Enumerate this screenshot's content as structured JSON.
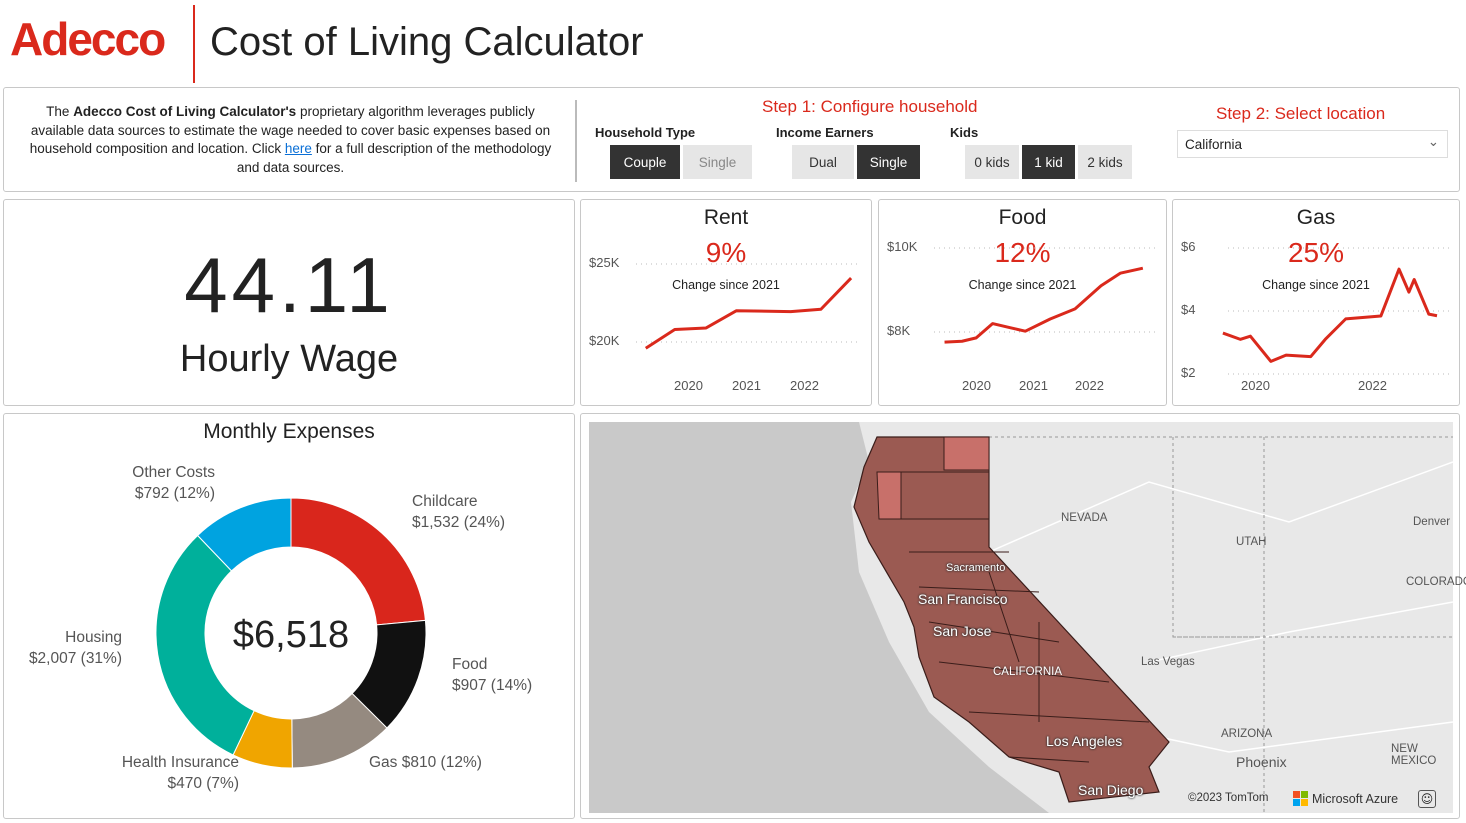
{
  "header": {
    "logo": "Adecco",
    "title": "Cost of Living Calculator"
  },
  "intro": {
    "pre": "The ",
    "brand": "Adecco Cost of Living Calculator's",
    "mid": " proprietary algorithm leverages publicly available data sources to estimate the wage needed to cover basic expenses based on household composition and location. Click ",
    "link": "here",
    "post": " for a full description of the methodology and data sources."
  },
  "step1": {
    "title": "Step 1: Configure household",
    "household_type": {
      "label": "Household Type",
      "options": [
        "Couple",
        "Single"
      ],
      "selected": "Couple"
    },
    "income_earners": {
      "label": "Income Earners",
      "options": [
        "Dual",
        "Single"
      ],
      "selected": "Single"
    },
    "kids": {
      "label": "Kids",
      "options": [
        "0 kids",
        "1 kid",
        "2 kids"
      ],
      "selected": "1 kid"
    }
  },
  "step2": {
    "title": "Step 2: Select location",
    "value": "California"
  },
  "wage": {
    "value": "44.11",
    "label": "Hourly Wage"
  },
  "kpis": [
    {
      "title": "Rent",
      "change": "9%",
      "caption": "Change since 2021",
      "yticks": [
        "$25K",
        "$20K"
      ],
      "xticks": [
        "2020",
        "2021",
        "2022"
      ]
    },
    {
      "title": "Food",
      "change": "12%",
      "caption": "Change since 2021",
      "yticks": [
        "$10K",
        "$8K"
      ],
      "xticks": [
        "2020",
        "2021",
        "2022"
      ]
    },
    {
      "title": "Gas",
      "change": "25%",
      "caption": "Change since 2021",
      "yticks": [
        "$6",
        "$4",
        "$2"
      ],
      "xticks": [
        "2020",
        "2022"
      ]
    }
  ],
  "chart_data": [
    {
      "type": "line",
      "title": "Rent",
      "ylim": [
        19000,
        26000
      ],
      "xlim": [
        2019,
        2023
      ],
      "grid": true,
      "x": [
        2019.22,
        2019.72,
        2020.26,
        2020.78,
        2021.72,
        2022.24,
        2022.76
      ],
      "y": [
        19600,
        20800,
        20900,
        22000,
        21950,
        22100,
        24100
      ]
    },
    {
      "type": "line",
      "title": "Food",
      "ylim": [
        7500,
        10200
      ],
      "xlim": [
        2019,
        2023.2
      ],
      "grid": true,
      "x": [
        2019.39,
        2019.7,
        2019.95,
        2020.24,
        2020.56,
        2020.82,
        2021.26,
        2021.7,
        2022.16,
        2022.5,
        2022.9
      ],
      "y": [
        7760,
        7780,
        7860,
        8200,
        8100,
        8020,
        8310,
        8550,
        9100,
        9400,
        9520
      ]
    },
    {
      "type": "line",
      "title": "Gas",
      "ylim": [
        2,
        6.2
      ],
      "xlim": [
        2019,
        2023.2
      ],
      "grid": true,
      "x": [
        2019.4,
        2019.7,
        2019.87,
        2020.22,
        2020.48,
        2020.9,
        2021.15,
        2021.5,
        2022.1,
        2022.41,
        2022.58,
        2022.67,
        2022.92,
        2023.06
      ],
      "y": [
        3.3,
        3.1,
        3.2,
        2.4,
        2.6,
        2.55,
        3.1,
        3.75,
        3.84,
        5.33,
        4.6,
        5.0,
        3.9,
        3.85
      ]
    },
    {
      "type": "pie",
      "title": "Monthly Expenses",
      "total": "$6,518",
      "slices": [
        {
          "name": "Childcare",
          "value": 1532,
          "label": "$1,532 (24%)",
          "color": "#d9261c"
        },
        {
          "name": "Food",
          "value": 907,
          "label": "$907 (14%)",
          "color": "#111111"
        },
        {
          "name": "Gas",
          "value": 810,
          "label": "$810 (12%)",
          "color": "#958a80"
        },
        {
          "name": "Health Insurance",
          "value": 470,
          "label": "$470 (7%)",
          "color": "#f0a500"
        },
        {
          "name": "Housing",
          "value": 2007,
          "label": "$2,007 (31%)",
          "color": "#00b09b"
        },
        {
          "name": "Other Costs",
          "value": 792,
          "label": "$792 (12%)",
          "color": "#00a3e0"
        }
      ]
    }
  ],
  "map": {
    "labels": [
      "NEVADA",
      "UTAH",
      "COLORADO",
      "ARIZONA",
      "NEW MEXICO",
      "CALIFORNIA",
      "Denver",
      "Las Vegas",
      "Phoenix"
    ],
    "cities": [
      "Sacramento",
      "San Francisco",
      "San Jose",
      "Los Angeles",
      "San Diego"
    ],
    "copyright": "©2023 TomTom",
    "brand": "Microsoft Azure",
    "fill": "#9b5a52"
  }
}
